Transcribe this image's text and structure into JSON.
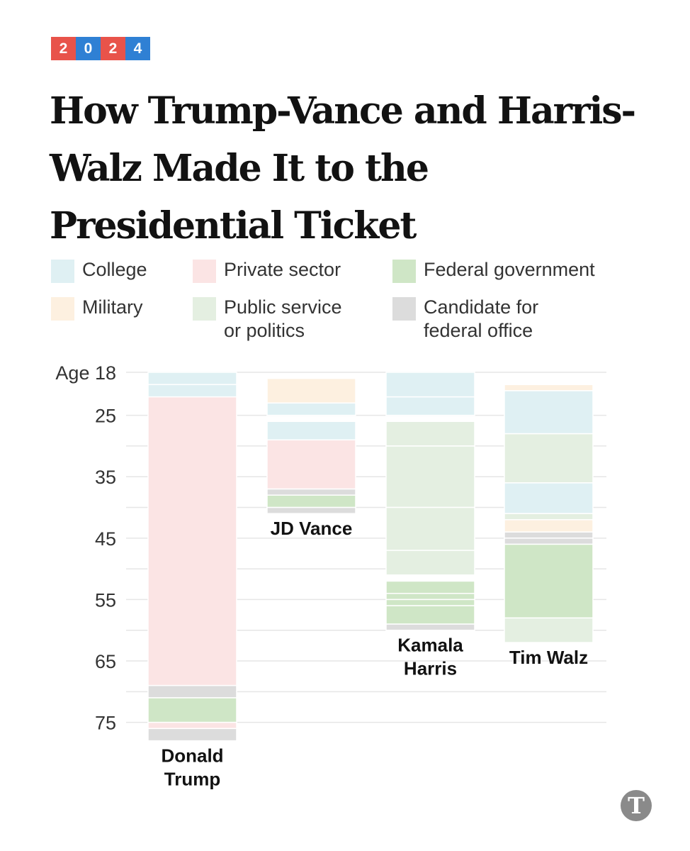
{
  "badge": {
    "chars": [
      "2",
      "0",
      "2",
      "4"
    ],
    "colors": [
      "#e8534a",
      "#2f80d4",
      "#e8534a",
      "#2f80d4"
    ]
  },
  "chart_data": {
    "type": "bar",
    "title": "How Trump-Vance and Harris-Walz Made It to the Presidential Ticket",
    "orientation": "vertical-timeline",
    "axis": {
      "label": "Age",
      "range": [
        18,
        78
      ],
      "ticks": [
        {
          "value": 18,
          "label": "Age 18"
        },
        {
          "value": 25,
          "label": "25"
        },
        {
          "value": 35,
          "label": "35"
        },
        {
          "value": 45,
          "label": "45"
        },
        {
          "value": 55,
          "label": "55"
        },
        {
          "value": 65,
          "label": "65"
        },
        {
          "value": 75,
          "label": "75"
        }
      ],
      "gridlines": [
        18,
        25,
        30,
        35,
        40,
        45,
        50,
        55,
        60,
        65,
        70,
        75
      ]
    },
    "legend": [
      {
        "key": "college",
        "label": "College",
        "color": "#dff0f3"
      },
      {
        "key": "private",
        "label": "Private sector",
        "color": "#fbe4e4"
      },
      {
        "key": "federal",
        "label": "Federal government",
        "color": "#cfe6c6"
      },
      {
        "key": "military",
        "label": "Military",
        "color": "#fdf0e0"
      },
      {
        "key": "public",
        "label": "Public service\nor politics",
        "color": "#e4efe1"
      },
      {
        "key": "candidate",
        "label": "Candidate for\nfederal office",
        "color": "#dcdcdc"
      }
    ],
    "series": [
      {
        "name": "Donald\nTrump",
        "segments": [
          {
            "cat": "college",
            "start": 18,
            "end": 20
          },
          {
            "cat": "college",
            "start": 20,
            "end": 22
          },
          {
            "cat": "private",
            "start": 22,
            "end": 69
          },
          {
            "cat": "candidate",
            "start": 69,
            "end": 71
          },
          {
            "cat": "federal",
            "start": 71,
            "end": 75
          },
          {
            "cat": "private",
            "start": 75,
            "end": 76
          },
          {
            "cat": "candidate",
            "start": 76,
            "end": 78
          }
        ]
      },
      {
        "name": "JD Vance",
        "segments": [
          {
            "cat": "military",
            "start": 19,
            "end": 23
          },
          {
            "cat": "college",
            "start": 23,
            "end": 25
          },
          {
            "cat": "college",
            "start": 26,
            "end": 29
          },
          {
            "cat": "private",
            "start": 29,
            "end": 37
          },
          {
            "cat": "candidate",
            "start": 37,
            "end": 38
          },
          {
            "cat": "federal",
            "start": 38,
            "end": 40
          },
          {
            "cat": "candidate",
            "start": 40,
            "end": 41
          }
        ]
      },
      {
        "name": "Kamala\nHarris",
        "segments": [
          {
            "cat": "college",
            "start": 18,
            "end": 22
          },
          {
            "cat": "college",
            "start": 22,
            "end": 25
          },
          {
            "cat": "public",
            "start": 26,
            "end": 30
          },
          {
            "cat": "public",
            "start": 30,
            "end": 40
          },
          {
            "cat": "public",
            "start": 40,
            "end": 47
          },
          {
            "cat": "public",
            "start": 47,
            "end": 51
          },
          {
            "cat": "federal",
            "start": 52,
            "end": 54
          },
          {
            "cat": "federal",
            "start": 54,
            "end": 55
          },
          {
            "cat": "federal",
            "start": 55,
            "end": 56
          },
          {
            "cat": "federal",
            "start": 56,
            "end": 59
          },
          {
            "cat": "candidate",
            "start": 59,
            "end": 60
          }
        ]
      },
      {
        "name": "Tim Walz",
        "segments": [
          {
            "cat": "military",
            "start": 20,
            "end": 21
          },
          {
            "cat": "college",
            "start": 21,
            "end": 28
          },
          {
            "cat": "public",
            "start": 28,
            "end": 36
          },
          {
            "cat": "college",
            "start": 36,
            "end": 41
          },
          {
            "cat": "public",
            "start": 41,
            "end": 42
          },
          {
            "cat": "military",
            "start": 42,
            "end": 44
          },
          {
            "cat": "candidate",
            "start": 44,
            "end": 45
          },
          {
            "cat": "candidate",
            "start": 45,
            "end": 46
          },
          {
            "cat": "federal",
            "start": 46,
            "end": 58
          },
          {
            "cat": "public",
            "start": 58,
            "end": 62
          }
        ]
      }
    ]
  },
  "logo": {
    "glyph": "T"
  }
}
